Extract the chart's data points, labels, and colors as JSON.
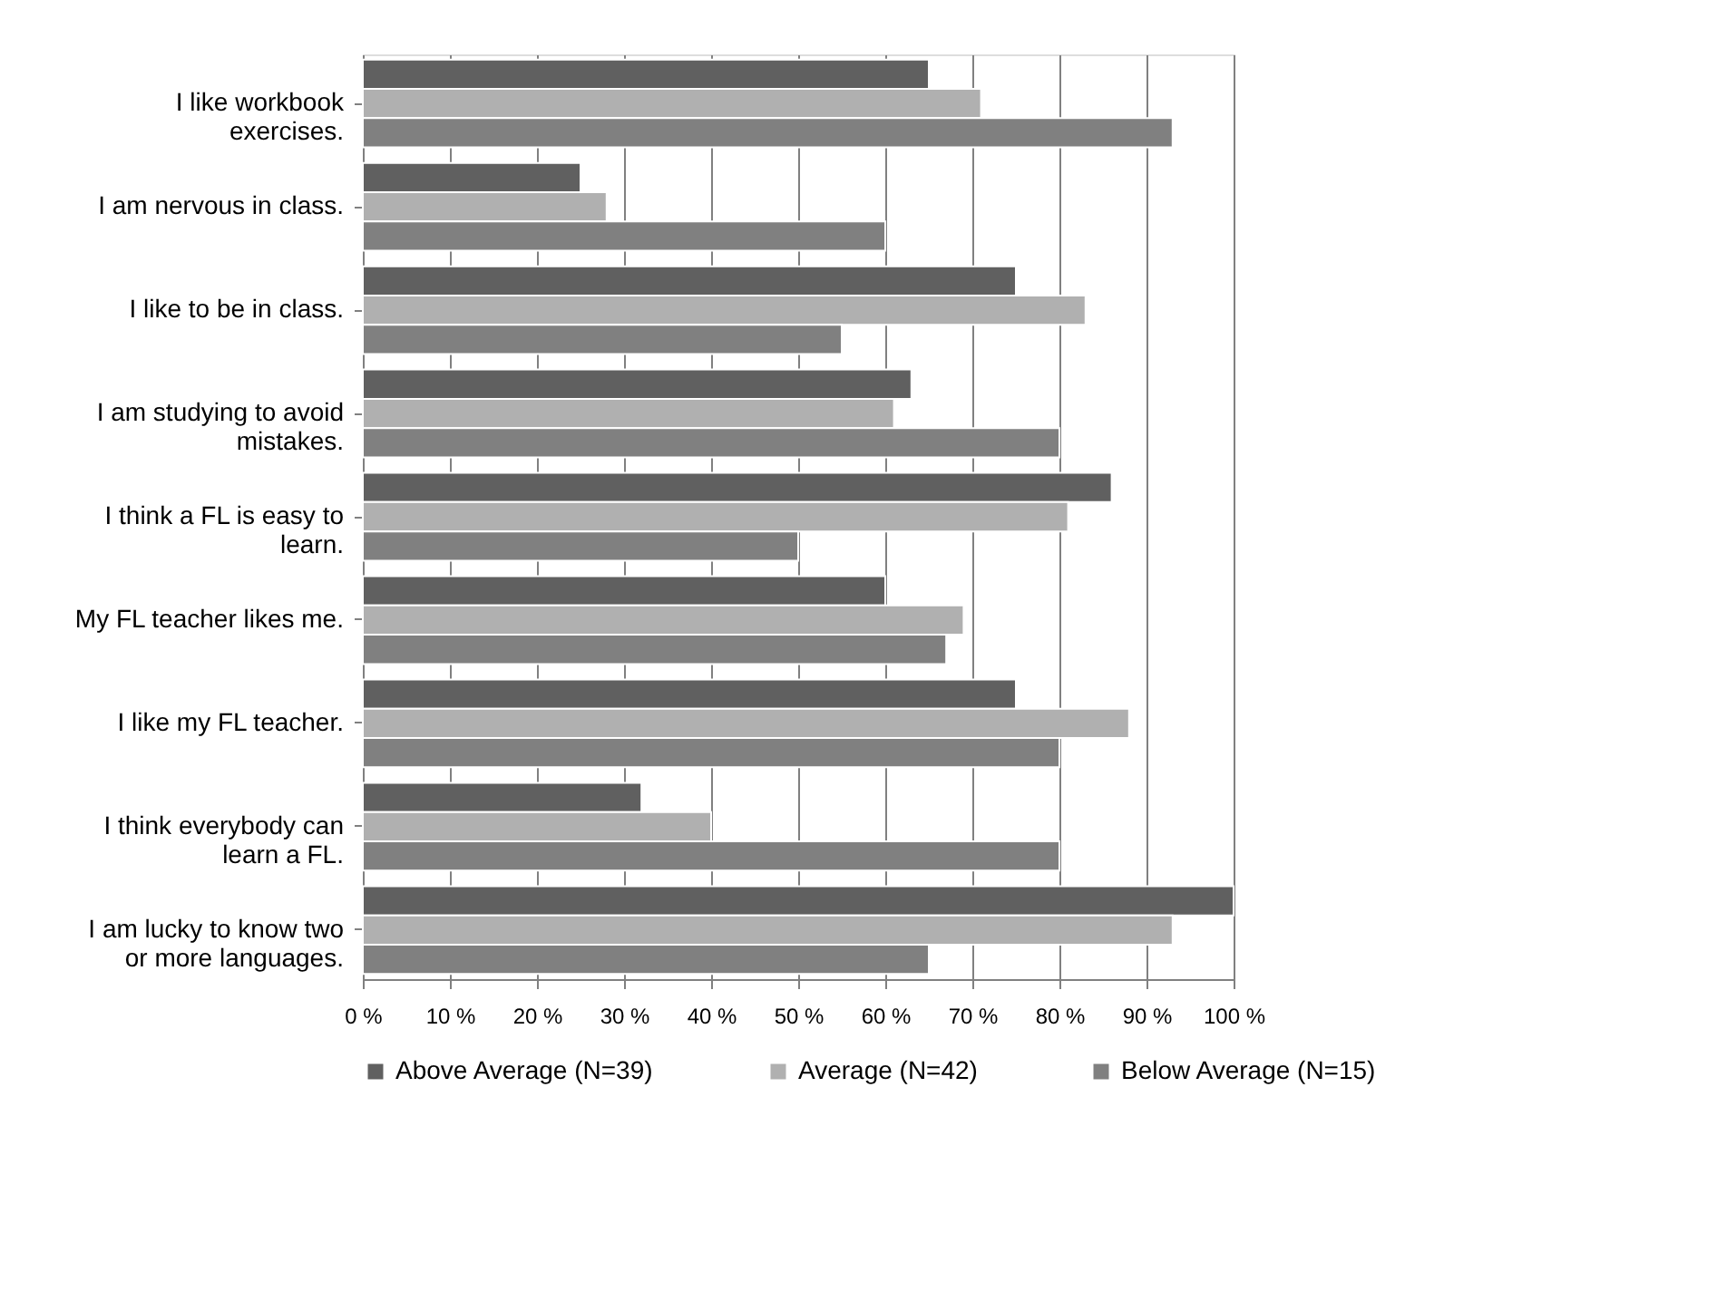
{
  "chart_data": {
    "type": "bar",
    "orientation": "horizontal",
    "categories": [
      "I like workbook exercises.",
      "I am nervous in class.",
      "I like to be in class.",
      "I am studying to avoid mistakes.",
      "I think a FL is easy to learn.",
      "My FL teacher likes me.",
      "I like my FL teacher.",
      "I think everybody can learn a FL.",
      "I am lucky to know two or more languages."
    ],
    "series": [
      {
        "name": "Above Average (N=39)",
        "color": "#606060",
        "values": [
          65,
          25,
          75,
          63,
          86,
          60,
          75,
          32,
          100
        ]
      },
      {
        "name": "Average (N=42)",
        "color": "#b0b0b0",
        "values": [
          71,
          28,
          83,
          61,
          81,
          69,
          88,
          40,
          93
        ]
      },
      {
        "name": "Below Average (N=15)",
        "color": "#808080",
        "values": [
          93,
          60,
          55,
          80,
          50,
          67,
          80,
          80,
          65
        ]
      }
    ],
    "xlim": [
      0,
      100
    ],
    "xticks": [
      {
        "value": 0,
        "label": "0 %"
      },
      {
        "value": 10,
        "label": "10 %"
      },
      {
        "value": 20,
        "label": "20 %"
      },
      {
        "value": 30,
        "label": "30 %"
      },
      {
        "value": 40,
        "label": "40 %"
      },
      {
        "value": 50,
        "label": "50 %"
      },
      {
        "value": 60,
        "label": "60 %"
      },
      {
        "value": 70,
        "label": "70 %"
      },
      {
        "value": 80,
        "label": "80 %"
      },
      {
        "value": 90,
        "label": "90 %"
      },
      {
        "value": 100,
        "label": "100 %"
      }
    ],
    "grid": "x",
    "legend": "bottom"
  }
}
